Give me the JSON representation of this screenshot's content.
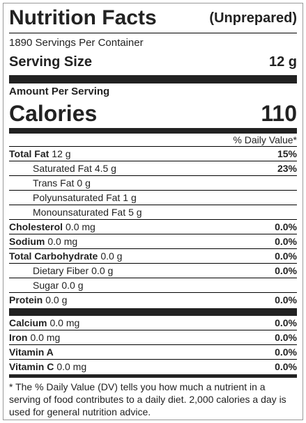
{
  "header": {
    "title": "Nutrition Facts",
    "subtitle": "(Unprepared)",
    "servings": "1890 Servings Per Container",
    "serving_size_label": "Serving Size",
    "serving_size": "12 g"
  },
  "amount_per_serving": "Amount Per Serving",
  "calories": {
    "label": "Calories",
    "value": 110
  },
  "daily_value_header": "% Daily Value*",
  "nutrients": [
    {
      "name": "Total Fat",
      "amount": "12 g",
      "dv": "15%"
    },
    {
      "name": "Saturated Fat",
      "amount": "4.5 g",
      "dv": "23%"
    },
    {
      "name": "Trans Fat",
      "amount": "0 g"
    },
    {
      "name": "Polyunsaturated Fat",
      "amount": "1 g"
    },
    {
      "name": "Monounsaturated Fat",
      "amount": "5 g"
    },
    {
      "name": "Cholesterol",
      "amount": "0.0 mg",
      "dv": "0.0%"
    },
    {
      "name": "Sodium",
      "amount": "0.0 mg",
      "dv": "0.0%"
    },
    {
      "name": "Total Carbohydrate",
      "amount": "0.0 g",
      "dv": "0.0%"
    },
    {
      "name": "Dietary Fiber",
      "amount": "0.0 g",
      "dv": "0.0%"
    },
    {
      "name": "Sugar",
      "amount": "0.0 g"
    },
    {
      "name": "Protein",
      "amount": "0.0 g",
      "dv": "0.0%"
    }
  ],
  "vitamins": [
    {
      "name": "Calcium",
      "amount": "0.0 mg",
      "dv": "0.0%"
    },
    {
      "name": "Iron",
      "amount": "0.0 mg",
      "dv": "0.0%"
    },
    {
      "name": "Vitamin A",
      "dv": "0.0%"
    },
    {
      "name": "Vitamin C",
      "amount": "0.0 mg",
      "dv": "0.0%"
    }
  ],
  "footnote": "* The % Daily Value (DV) tells you how much a nutrient in a serving of food contributes to a daily diet. 2,000 calories a day is used for general nutrition advice."
}
